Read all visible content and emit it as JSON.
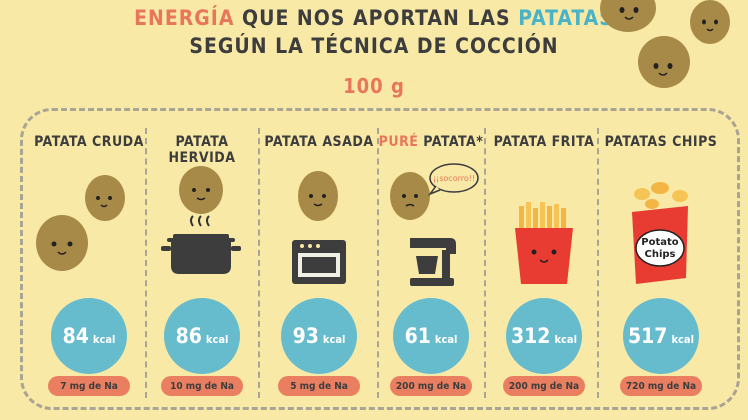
{
  "title": {
    "line1_highlight": "ENERGÍA",
    "line1_middle": " QUE NOS APORTAN LAS ",
    "line1_highlight2": "PATATAS",
    "line2": "SEGÚN LA TÉCNICA DE COCCIÓN",
    "amount": "100 g"
  },
  "colors": {
    "background": "#f8e9a6",
    "accent_orange": "#e8765a",
    "accent_blue": "#4bb3c7",
    "energy_circle": "#66bccd",
    "sodium_pill": "#ea7e61"
  },
  "speech_bubble": "¡¡socorro!!",
  "chips_bag_label": [
    "Potato",
    "Chips"
  ],
  "columns": [
    {
      "title": "PATATA CRUDA",
      "title_highlight": "",
      "energy": "84",
      "unit": "kcal",
      "sodium": "7 mg de Na",
      "icon": "raw-potatoes-icon"
    },
    {
      "title": "PATATA HERVIDA",
      "title_highlight": "",
      "energy": "86",
      "unit": "kcal",
      "sodium": "10 mg de Na",
      "icon": "cooking-pot-icon"
    },
    {
      "title": "PATATA ASADA",
      "title_highlight": "",
      "energy": "93",
      "unit": "kcal",
      "sodium": "5 mg de Na",
      "icon": "oven-icon"
    },
    {
      "title": " PATATA*",
      "title_highlight": "PURÉ",
      "energy": "61",
      "unit": "kcal",
      "sodium": "200 mg de Na",
      "icon": "mixer-icon"
    },
    {
      "title": "PATATA FRITA",
      "title_highlight": "",
      "energy": "312",
      "unit": "kcal",
      "sodium": "200 mg de Na",
      "icon": "fries-icon"
    },
    {
      "title": "PATATAS CHIPS",
      "title_highlight": "",
      "energy": "517",
      "unit": "kcal",
      "sodium": "720 mg de Na",
      "icon": "chips-bag-icon"
    }
  ]
}
